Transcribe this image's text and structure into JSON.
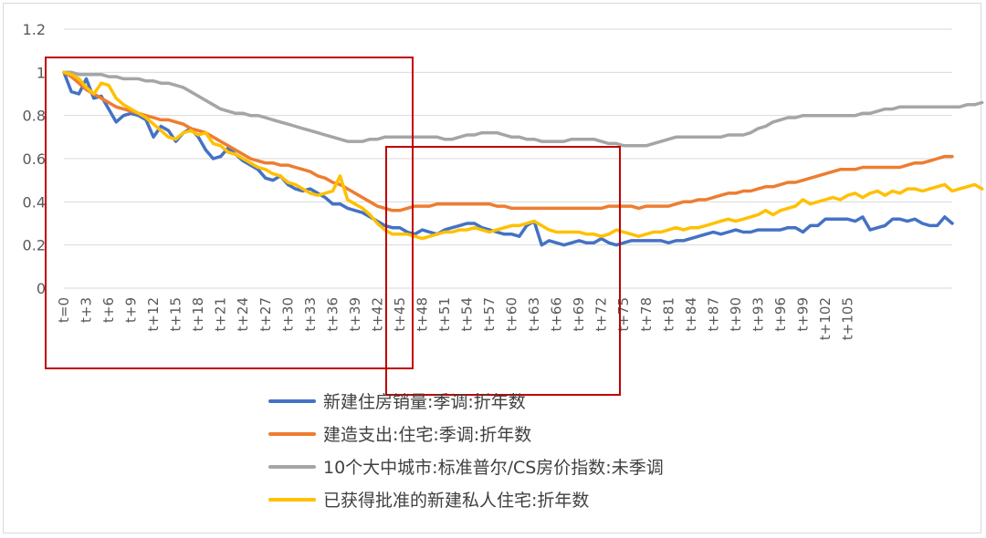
{
  "chart_data": {
    "type": "line",
    "title": "",
    "xlabel": "",
    "ylabel": "",
    "ylim": [
      0,
      1.2
    ],
    "y_ticks": [
      "0",
      "0.2",
      "0.4",
      "0.6",
      "0.8",
      "1",
      "1.2"
    ],
    "grid": true,
    "legend_position": "bottom",
    "x_tick_labels": [
      "t=0",
      "t+3",
      "t+6",
      "t+9",
      "t+12",
      "t+15",
      "t+18",
      "t+21",
      "t+24",
      "t+27",
      "t+30",
      "t+33",
      "t+36",
      "t+39",
      "t+42",
      "t+45",
      "t+48",
      "t+51",
      "t+54",
      "t+57",
      "t+60",
      "t+63",
      "t+66",
      "t+69",
      "t+72",
      "t+75",
      "t+78",
      "t+81",
      "t+84",
      "t+87",
      "t+90",
      "t+93",
      "t+96",
      "t+99",
      "t+102",
      "t+105"
    ],
    "x_tick_step": 3,
    "series": [
      {
        "name": "新建住房销量:季调:折年数",
        "color": "#4472C4",
        "values": [
          1.0,
          0.91,
          0.9,
          0.97,
          0.88,
          0.89,
          0.83,
          0.77,
          0.8,
          0.81,
          0.8,
          0.78,
          0.7,
          0.75,
          0.73,
          0.68,
          0.72,
          0.74,
          0.7,
          0.64,
          0.6,
          0.61,
          0.65,
          0.62,
          0.59,
          0.57,
          0.55,
          0.51,
          0.5,
          0.52,
          0.48,
          0.46,
          0.45,
          0.46,
          0.44,
          0.42,
          0.39,
          0.39,
          0.37,
          0.36,
          0.35,
          0.33,
          0.31,
          0.29,
          0.28,
          0.28,
          0.26,
          0.25,
          0.27,
          0.26,
          0.25,
          0.27,
          0.28,
          0.29,
          0.3,
          0.3,
          0.28,
          0.27,
          0.26,
          0.25,
          0.25,
          0.24,
          0.29,
          0.31,
          0.2,
          0.22,
          0.21,
          0.2,
          0.21,
          0.22,
          0.21,
          0.21,
          0.23,
          0.21,
          0.2,
          0.21,
          0.22,
          0.22,
          0.22,
          0.22,
          0.22,
          0.21,
          0.22,
          0.22,
          0.23,
          0.24,
          0.25,
          0.26,
          0.25,
          0.26,
          0.27,
          0.26,
          0.26,
          0.27,
          0.27,
          0.27,
          0.27,
          0.28,
          0.28,
          0.26,
          0.29,
          0.29,
          0.32,
          0.32,
          0.32,
          0.32,
          0.31,
          0.33,
          0.27,
          0.28,
          0.29,
          0.32,
          0.32,
          0.31,
          0.32,
          0.3,
          0.29,
          0.29,
          0.33,
          0.3
        ]
      },
      {
        "name": "建造支出:住宅:季调:折年数",
        "color": "#ED7D31",
        "values": [
          1.0,
          0.98,
          0.95,
          0.92,
          0.9,
          0.88,
          0.86,
          0.84,
          0.83,
          0.82,
          0.81,
          0.8,
          0.79,
          0.78,
          0.78,
          0.77,
          0.76,
          0.74,
          0.73,
          0.72,
          0.7,
          0.68,
          0.66,
          0.64,
          0.62,
          0.6,
          0.59,
          0.58,
          0.58,
          0.57,
          0.57,
          0.56,
          0.55,
          0.54,
          0.52,
          0.51,
          0.49,
          0.48,
          0.46,
          0.44,
          0.42,
          0.4,
          0.38,
          0.37,
          0.36,
          0.36,
          0.37,
          0.38,
          0.38,
          0.38,
          0.39,
          0.39,
          0.39,
          0.39,
          0.39,
          0.39,
          0.39,
          0.39,
          0.38,
          0.38,
          0.37,
          0.37,
          0.37,
          0.37,
          0.37,
          0.37,
          0.37,
          0.37,
          0.37,
          0.37,
          0.37,
          0.37,
          0.37,
          0.38,
          0.38,
          0.38,
          0.38,
          0.37,
          0.38,
          0.38,
          0.38,
          0.38,
          0.39,
          0.4,
          0.4,
          0.41,
          0.41,
          0.42,
          0.43,
          0.44,
          0.44,
          0.45,
          0.45,
          0.46,
          0.47,
          0.47,
          0.48,
          0.49,
          0.49,
          0.5,
          0.51,
          0.52,
          0.53,
          0.54,
          0.55,
          0.55,
          0.55,
          0.56,
          0.56,
          0.56,
          0.56,
          0.56,
          0.56,
          0.57,
          0.58,
          0.58,
          0.59,
          0.6,
          0.61,
          0.61
        ]
      },
      {
        "name": "10个大中城市:标准普尔/CS房价指数:未季调",
        "color": "#A5A5A5",
        "values": [
          1.0,
          1.0,
          0.99,
          0.99,
          0.99,
          0.99,
          0.98,
          0.98,
          0.97,
          0.97,
          0.97,
          0.96,
          0.96,
          0.95,
          0.95,
          0.94,
          0.93,
          0.91,
          0.89,
          0.87,
          0.85,
          0.83,
          0.82,
          0.81,
          0.81,
          0.8,
          0.8,
          0.79,
          0.78,
          0.77,
          0.76,
          0.75,
          0.74,
          0.73,
          0.72,
          0.71,
          0.7,
          0.69,
          0.68,
          0.68,
          0.68,
          0.69,
          0.69,
          0.7,
          0.7,
          0.7,
          0.7,
          0.7,
          0.7,
          0.7,
          0.7,
          0.69,
          0.69,
          0.7,
          0.71,
          0.71,
          0.72,
          0.72,
          0.72,
          0.71,
          0.7,
          0.7,
          0.69,
          0.69,
          0.68,
          0.68,
          0.68,
          0.68,
          0.69,
          0.69,
          0.69,
          0.69,
          0.68,
          0.67,
          0.67,
          0.66,
          0.66,
          0.66,
          0.66,
          0.67,
          0.68,
          0.69,
          0.7,
          0.7,
          0.7,
          0.7,
          0.7,
          0.7,
          0.7,
          0.71,
          0.71,
          0.71,
          0.72,
          0.74,
          0.75,
          0.77,
          0.78,
          0.79,
          0.79,
          0.8,
          0.8,
          0.8,
          0.8,
          0.8,
          0.8,
          0.8,
          0.8,
          0.81,
          0.81,
          0.82,
          0.83,
          0.83,
          0.84,
          0.84,
          0.84,
          0.84,
          0.84,
          0.84,
          0.84,
          0.84,
          0.84,
          0.85,
          0.85,
          0.86
        ]
      },
      {
        "name": "已获得批准的新建私人住宅:折年数",
        "color": "#FFC000",
        "values": [
          1.0,
          0.99,
          0.97,
          0.93,
          0.9,
          0.95,
          0.94,
          0.88,
          0.85,
          0.83,
          0.81,
          0.79,
          0.76,
          0.73,
          0.7,
          0.69,
          0.72,
          0.73,
          0.71,
          0.72,
          0.67,
          0.66,
          0.63,
          0.62,
          0.6,
          0.58,
          0.56,
          0.55,
          0.53,
          0.52,
          0.49,
          0.48,
          0.46,
          0.44,
          0.43,
          0.44,
          0.45,
          0.52,
          0.41,
          0.39,
          0.37,
          0.34,
          0.3,
          0.27,
          0.25,
          0.25,
          0.25,
          0.24,
          0.23,
          0.24,
          0.25,
          0.26,
          0.26,
          0.27,
          0.27,
          0.28,
          0.27,
          0.26,
          0.27,
          0.28,
          0.29,
          0.29,
          0.3,
          0.31,
          0.29,
          0.27,
          0.26,
          0.26,
          0.26,
          0.26,
          0.25,
          0.25,
          0.24,
          0.25,
          0.27,
          0.26,
          0.25,
          0.24,
          0.25,
          0.26,
          0.26,
          0.27,
          0.28,
          0.27,
          0.28,
          0.28,
          0.29,
          0.3,
          0.31,
          0.32,
          0.31,
          0.32,
          0.33,
          0.34,
          0.36,
          0.34,
          0.36,
          0.37,
          0.38,
          0.41,
          0.39,
          0.4,
          0.41,
          0.42,
          0.41,
          0.43,
          0.44,
          0.42,
          0.44,
          0.45,
          0.43,
          0.45,
          0.44,
          0.46,
          0.46,
          0.45,
          0.46,
          0.47,
          0.48,
          0.45,
          0.46,
          0.47,
          0.48,
          0.46
        ]
      }
    ]
  },
  "annotations": {
    "box_color": "#C00000"
  }
}
